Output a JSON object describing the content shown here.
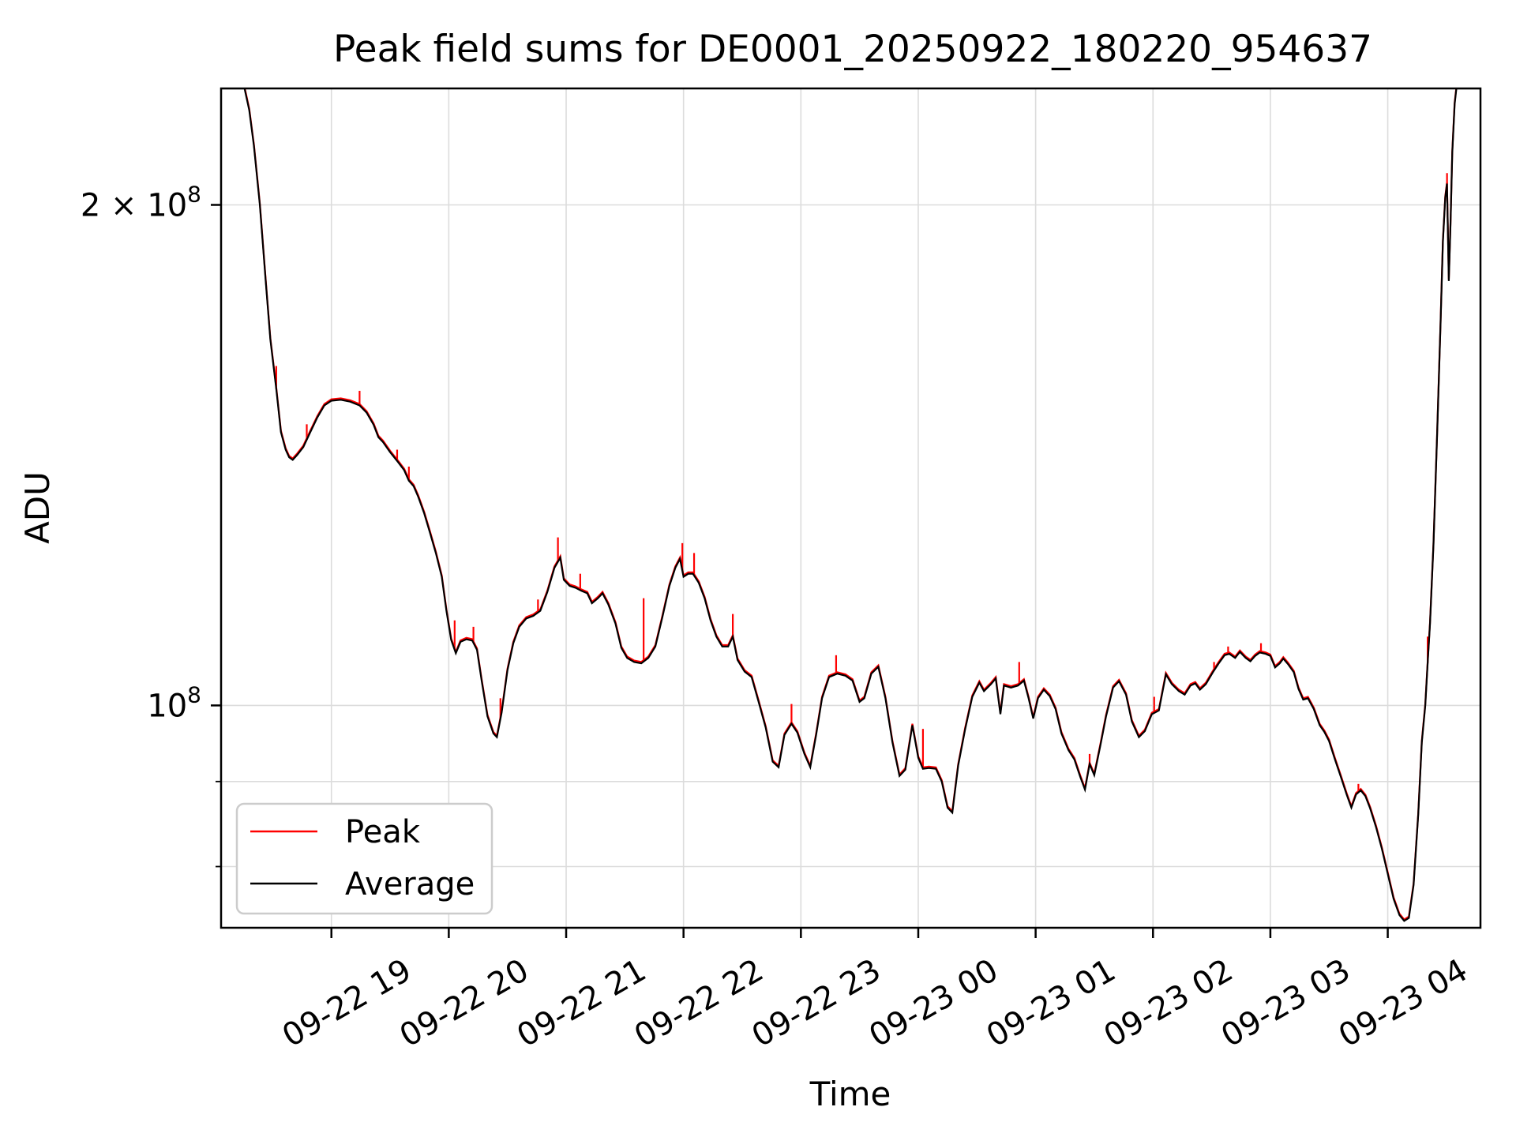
{
  "chart_data": {
    "type": "line",
    "title": "Peak field sums for DE0001_20250922_180220_954637",
    "xlabel": "Time",
    "ylabel": "ADU",
    "x_unit": "hours since 2025-09-22 00:00",
    "xlim": [
      18.06,
      28.79
    ],
    "yscale": "log",
    "ylim": [
      73500000,
      235000000
    ],
    "grid": true,
    "grid_color": "#dcdcdc",
    "background_color": "#ffffff",
    "axis_color": "#000000",
    "x_ticks": [
      {
        "hour": 19,
        "label": "09-22 19"
      },
      {
        "hour": 20,
        "label": "09-22 20"
      },
      {
        "hour": 21,
        "label": "09-22 21"
      },
      {
        "hour": 22,
        "label": "09-22 22"
      },
      {
        "hour": 23,
        "label": "09-22 23"
      },
      {
        "hour": 24,
        "label": "09-23 00"
      },
      {
        "hour": 25,
        "label": "09-23 01"
      },
      {
        "hour": 26,
        "label": "09-23 02"
      },
      {
        "hour": 27,
        "label": "09-23 03"
      },
      {
        "hour": 28,
        "label": "09-23 04"
      }
    ],
    "y_ticks": [
      {
        "value": 200000000,
        "label": "2 × 10⁸",
        "base": "2 × 10",
        "sup": "8",
        "major": false
      },
      {
        "value": 100000000,
        "label": "10⁸",
        "base": "10",
        "sup": "8",
        "major": true
      }
    ],
    "y_minor_gridlines": [
      90000000,
      80000000
    ],
    "legend": {
      "position": "lower left",
      "entries": [
        {
          "name": "Peak",
          "color": "#ff0000"
        },
        {
          "name": "Average",
          "color": "#000000"
        }
      ]
    },
    "value_scale": 100000000,
    "series": [
      {
        "name": "Average",
        "color": "#000000",
        "points": [
          [
            18.06,
            2.35
          ],
          [
            18.26,
            2.35
          ],
          [
            18.3,
            2.28
          ],
          [
            18.34,
            2.17
          ],
          [
            18.39,
            2.0
          ],
          [
            18.44,
            1.8
          ],
          [
            18.48,
            1.66
          ],
          [
            18.53,
            1.55
          ],
          [
            18.57,
            1.46
          ],
          [
            18.61,
            1.425
          ],
          [
            18.64,
            1.41
          ],
          [
            18.67,
            1.405
          ],
          [
            18.71,
            1.415
          ],
          [
            18.76,
            1.43
          ],
          [
            18.82,
            1.46
          ],
          [
            18.88,
            1.49
          ],
          [
            18.94,
            1.515
          ],
          [
            19.0,
            1.525
          ],
          [
            19.08,
            1.527
          ],
          [
            19.16,
            1.523
          ],
          [
            19.24,
            1.515
          ],
          [
            19.3,
            1.5
          ],
          [
            19.36,
            1.475
          ],
          [
            19.4,
            1.45
          ],
          [
            19.44,
            1.44
          ],
          [
            19.5,
            1.42
          ],
          [
            19.57,
            1.4
          ],
          [
            19.62,
            1.385
          ],
          [
            19.66,
            1.365
          ],
          [
            19.7,
            1.355
          ],
          [
            19.74,
            1.335
          ],
          [
            19.79,
            1.305
          ],
          [
            19.84,
            1.27
          ],
          [
            19.89,
            1.235
          ],
          [
            19.94,
            1.195
          ],
          [
            19.98,
            1.14
          ],
          [
            20.02,
            1.095
          ],
          [
            20.06,
            1.075
          ],
          [
            20.1,
            1.092
          ],
          [
            20.15,
            1.096
          ],
          [
            20.2,
            1.094
          ],
          [
            20.24,
            1.08
          ],
          [
            20.28,
            1.035
          ],
          [
            20.33,
            0.985
          ],
          [
            20.38,
            0.962
          ],
          [
            20.41,
            0.957
          ],
          [
            20.45,
            0.99
          ],
          [
            20.5,
            1.05
          ],
          [
            20.55,
            1.09
          ],
          [
            20.6,
            1.115
          ],
          [
            20.66,
            1.128
          ],
          [
            20.72,
            1.132
          ],
          [
            20.78,
            1.14
          ],
          [
            20.84,
            1.17
          ],
          [
            20.9,
            1.21
          ],
          [
            20.95,
            1.227
          ],
          [
            20.98,
            1.19
          ],
          [
            21.03,
            1.18
          ],
          [
            21.08,
            1.177
          ],
          [
            21.13,
            1.172
          ],
          [
            21.18,
            1.168
          ],
          [
            21.22,
            1.152
          ],
          [
            21.27,
            1.16
          ],
          [
            21.31,
            1.168
          ],
          [
            21.36,
            1.15
          ],
          [
            21.42,
            1.12
          ],
          [
            21.47,
            1.083
          ],
          [
            21.52,
            1.068
          ],
          [
            21.58,
            1.062
          ],
          [
            21.64,
            1.06
          ],
          [
            21.7,
            1.068
          ],
          [
            21.76,
            1.085
          ],
          [
            21.82,
            1.13
          ],
          [
            21.88,
            1.18
          ],
          [
            21.93,
            1.21
          ],
          [
            21.97,
            1.225
          ],
          [
            22.0,
            1.195
          ],
          [
            22.04,
            1.2
          ],
          [
            22.08,
            1.2
          ],
          [
            22.13,
            1.185
          ],
          [
            22.18,
            1.16
          ],
          [
            22.23,
            1.125
          ],
          [
            22.28,
            1.1
          ],
          [
            22.33,
            1.085
          ],
          [
            22.38,
            1.085
          ],
          [
            22.42,
            1.1
          ],
          [
            22.46,
            1.065
          ],
          [
            22.52,
            1.048
          ],
          [
            22.58,
            1.04
          ],
          [
            22.64,
            1.005
          ],
          [
            22.7,
            0.97
          ],
          [
            22.76,
            0.925
          ],
          [
            22.81,
            0.918
          ],
          [
            22.86,
            0.96
          ],
          [
            22.92,
            0.975
          ],
          [
            22.97,
            0.963
          ],
          [
            23.03,
            0.935
          ],
          [
            23.08,
            0.918
          ],
          [
            23.13,
            0.96
          ],
          [
            23.18,
            1.01
          ],
          [
            23.24,
            1.04
          ],
          [
            23.31,
            1.045
          ],
          [
            23.38,
            1.042
          ],
          [
            23.44,
            1.035
          ],
          [
            23.5,
            1.005
          ],
          [
            23.54,
            1.01
          ],
          [
            23.6,
            1.045
          ],
          [
            23.66,
            1.055
          ],
          [
            23.72,
            1.01
          ],
          [
            23.78,
            0.95
          ],
          [
            23.84,
            0.907
          ],
          [
            23.89,
            0.915
          ],
          [
            23.95,
            0.973
          ],
          [
            24.0,
            0.93
          ],
          [
            24.04,
            0.916
          ],
          [
            24.09,
            0.917
          ],
          [
            24.15,
            0.916
          ],
          [
            24.2,
            0.9
          ],
          [
            24.25,
            0.868
          ],
          [
            24.29,
            0.862
          ],
          [
            24.34,
            0.92
          ],
          [
            24.4,
            0.968
          ],
          [
            24.46,
            1.012
          ],
          [
            24.52,
            1.032
          ],
          [
            24.56,
            1.02
          ],
          [
            24.62,
            1.03
          ],
          [
            24.66,
            1.038
          ],
          [
            24.7,
            0.988
          ],
          [
            24.73,
            1.028
          ],
          [
            24.79,
            1.025
          ],
          [
            24.85,
            1.028
          ],
          [
            24.9,
            1.035
          ],
          [
            24.94,
            1.01
          ],
          [
            24.98,
            0.982
          ],
          [
            25.02,
            1.01
          ],
          [
            25.07,
            1.022
          ],
          [
            25.12,
            1.013
          ],
          [
            25.17,
            0.995
          ],
          [
            25.22,
            0.962
          ],
          [
            25.28,
            0.94
          ],
          [
            25.33,
            0.928
          ],
          [
            25.38,
            0.906
          ],
          [
            25.42,
            0.89
          ],
          [
            25.46,
            0.922
          ],
          [
            25.5,
            0.908
          ],
          [
            25.55,
            0.945
          ],
          [
            25.6,
            0.985
          ],
          [
            25.66,
            1.025
          ],
          [
            25.71,
            1.034
          ],
          [
            25.77,
            1.015
          ],
          [
            25.82,
            0.978
          ],
          [
            25.88,
            0.957
          ],
          [
            25.93,
            0.965
          ],
          [
            25.99,
            0.988
          ],
          [
            26.05,
            0.993
          ],
          [
            26.11,
            1.044
          ],
          [
            26.16,
            1.03
          ],
          [
            26.22,
            1.02
          ],
          [
            26.27,
            1.015
          ],
          [
            26.32,
            1.028
          ],
          [
            26.36,
            1.031
          ],
          [
            26.4,
            1.022
          ],
          [
            26.45,
            1.03
          ],
          [
            26.51,
            1.047
          ],
          [
            26.56,
            1.06
          ],
          [
            26.61,
            1.072
          ],
          [
            26.65,
            1.074
          ],
          [
            26.7,
            1.068
          ],
          [
            26.74,
            1.077
          ],
          [
            26.79,
            1.068
          ],
          [
            26.83,
            1.063
          ],
          [
            26.87,
            1.071
          ],
          [
            26.91,
            1.076
          ],
          [
            26.96,
            1.074
          ],
          [
            27.0,
            1.071
          ],
          [
            27.04,
            1.054
          ],
          [
            27.08,
            1.06
          ],
          [
            27.11,
            1.067
          ],
          [
            27.15,
            1.059
          ],
          [
            27.2,
            1.047
          ],
          [
            27.24,
            1.023
          ],
          [
            27.28,
            1.008
          ],
          [
            27.32,
            1.01
          ],
          [
            27.37,
            0.995
          ],
          [
            27.42,
            0.973
          ],
          [
            27.46,
            0.964
          ],
          [
            27.5,
            0.952
          ],
          [
            27.55,
            0.928
          ],
          [
            27.6,
            0.906
          ],
          [
            27.65,
            0.884
          ],
          [
            27.69,
            0.868
          ],
          [
            27.73,
            0.884
          ],
          [
            27.77,
            0.889
          ],
          [
            27.81,
            0.882
          ],
          [
            27.85,
            0.867
          ],
          [
            27.9,
            0.845
          ],
          [
            27.95,
            0.82
          ],
          [
            28.0,
            0.792
          ],
          [
            28.05,
            0.765
          ],
          [
            28.1,
            0.748
          ],
          [
            28.14,
            0.742
          ],
          [
            28.18,
            0.745
          ],
          [
            28.22,
            0.78
          ],
          [
            28.26,
            0.86
          ],
          [
            28.29,
            0.95
          ],
          [
            28.32,
            1.0
          ],
          [
            28.34,
            1.06
          ],
          [
            28.36,
            1.12
          ],
          [
            28.39,
            1.25
          ],
          [
            28.42,
            1.45
          ],
          [
            28.45,
            1.7
          ],
          [
            28.47,
            1.9
          ],
          [
            28.49,
            2.02
          ],
          [
            28.505,
            2.06
          ],
          [
            28.52,
            1.8
          ],
          [
            28.535,
            1.95
          ],
          [
            28.55,
            2.15
          ],
          [
            28.57,
            2.3
          ],
          [
            28.585,
            2.35
          ],
          [
            28.79,
            2.35
          ]
        ]
      },
      {
        "name": "Peak",
        "color": "#ff0000",
        "note": "same as Average plus upward spikes",
        "spikes": [
          [
            18.53,
            1.6
          ],
          [
            18.79,
            1.476
          ],
          [
            19.24,
            1.546
          ],
          [
            19.56,
            1.425
          ],
          [
            19.66,
            1.392
          ],
          [
            20.05,
            1.125
          ],
          [
            20.21,
            1.115
          ],
          [
            20.44,
            1.01
          ],
          [
            20.76,
            1.158
          ],
          [
            20.93,
            1.262
          ],
          [
            21.12,
            1.2
          ],
          [
            21.66,
            1.16
          ],
          [
            21.99,
            1.252
          ],
          [
            22.09,
            1.235
          ],
          [
            22.42,
            1.135
          ],
          [
            22.92,
            1.002
          ],
          [
            23.3,
            1.072
          ],
          [
            23.47,
            1.02
          ],
          [
            24.04,
            0.968
          ],
          [
            24.86,
            1.062
          ],
          [
            25.46,
            0.935
          ],
          [
            26.01,
            1.012
          ],
          [
            26.52,
            1.062
          ],
          [
            26.64,
            1.085
          ],
          [
            26.92,
            1.09
          ],
          [
            27.75,
            0.897
          ],
          [
            28.34,
            1.1
          ],
          [
            28.505,
            2.09
          ]
        ]
      }
    ]
  }
}
